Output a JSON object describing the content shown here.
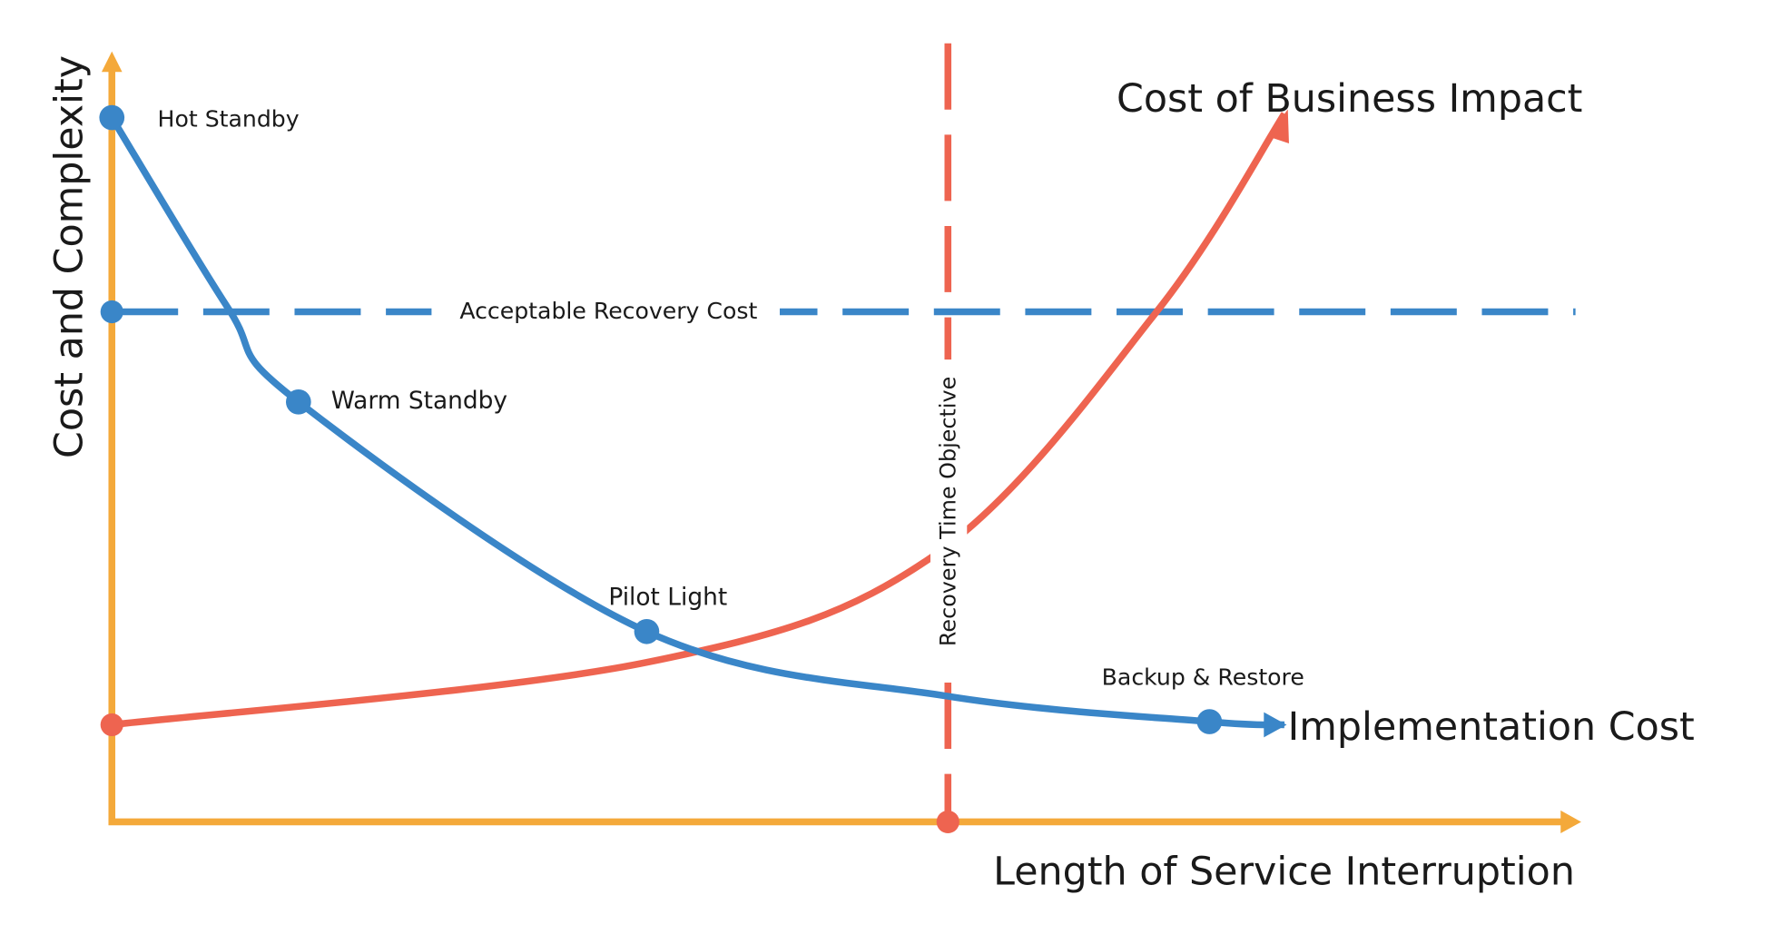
{
  "chart_data": {
    "type": "line",
    "title": "",
    "xlabel": "Length of Service Interruption",
    "ylabel": "Cost and Complexity",
    "xlim": [
      0,
      100
    ],
    "ylim": [
      0,
      100
    ],
    "grid": false,
    "series": [
      {
        "name": "Implementation Cost",
        "color": "#3a86c8",
        "x": [
          0,
          7.9,
          12.7,
          36.4,
          56.9,
          74.7,
          79.8
        ],
        "y": [
          91.4,
          66.7,
          54.5,
          24.7,
          16.3,
          13.0,
          12.6
        ],
        "points": [
          {
            "label": "Hot Standby",
            "x": 0,
            "y": 91.4
          },
          {
            "label": "Warm Standby",
            "x": 12.7,
            "y": 54.5
          },
          {
            "label": "Pilot Light",
            "x": 36.4,
            "y": 24.7
          },
          {
            "label": "Backup & Restore",
            "x": 74.7,
            "y": 13.0
          }
        ]
      },
      {
        "name": "Cost of Business Impact",
        "color": "#ee6450",
        "x": [
          0,
          36.4,
          55.9,
          71.1,
          79.8
        ],
        "y": [
          12.6,
          20.7,
          34.5,
          66.2,
          91.9
        ]
      }
    ],
    "reference_lines": [
      {
        "orientation": "horizontal",
        "label": "Acceptable Recovery Cost",
        "value": 66.2,
        "color": "#3a86c8"
      },
      {
        "orientation": "vertical",
        "label": "Recovery Time Objective",
        "value": 56.9,
        "color": "#ee6450"
      }
    ],
    "axis_color": "#f4a93a"
  }
}
